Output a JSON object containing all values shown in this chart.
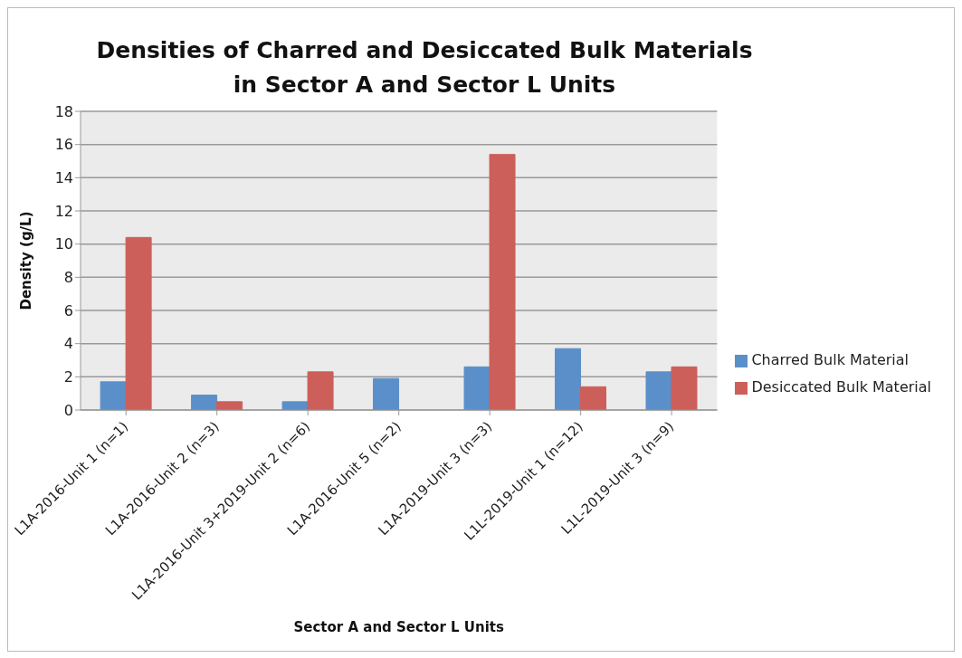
{
  "chart_data": {
    "type": "bar",
    "title": "Densities of Charred and Desiccated Bulk Materials in Sector A and Sector L Units",
    "xlabel": "Sector A and Sector L Units",
    "ylabel": "Density (g/L)",
    "categories": [
      "L1A-2016-Unit 1 (n=1)",
      "L1A-2016-Unit 2 (n=3)",
      "L1A-2016-Unit 3+2019-Unit 2 (n=6)",
      "L1A-2016-Unit 5 (n=2)",
      "L1A-2019-Unit 3 (n=3)",
      "L1L-2019-Unit 1 (n=12)",
      "L1L-2019-Unit 3 (n=9)"
    ],
    "series": [
      {
        "name": "Charred Bulk Material",
        "color": "#5b8fc9",
        "values": [
          1.7,
          0.9,
          0.5,
          1.9,
          2.6,
          3.7,
          2.3
        ]
      },
      {
        "name": "Desiccated Bulk Material",
        "color": "#cd5f5a",
        "values": [
          10.4,
          0.5,
          2.3,
          null,
          15.4,
          1.4,
          2.6
        ]
      }
    ],
    "ylim": [
      0,
      18
    ],
    "yticks": [
      0,
      2,
      4,
      6,
      8,
      10,
      12,
      14,
      16,
      18
    ],
    "grid": "y",
    "legend": "right"
  }
}
